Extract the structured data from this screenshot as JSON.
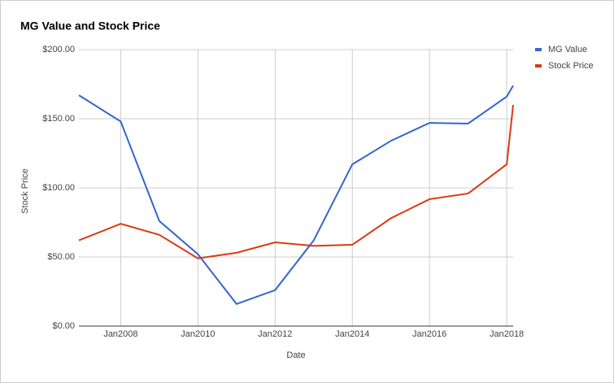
{
  "chart_data": {
    "type": "line",
    "title": "MG Value and Stock Price",
    "x_label": "Date",
    "y_label": "Stock Price",
    "x": [
      "2006-12",
      "2008-01",
      "2009-01",
      "2010-01",
      "2011-01",
      "2012-01",
      "2013-01",
      "2014-01",
      "2015-01",
      "2016-01",
      "2017-01",
      "2018-01",
      "2018-03"
    ],
    "xlim": [
      "2006-12",
      "2018-03"
    ],
    "xticks": [
      {
        "value": "2008-01",
        "label": "Jan2008"
      },
      {
        "value": "2010-01",
        "label": "Jan2010"
      },
      {
        "value": "2012-01",
        "label": "Jan2012"
      },
      {
        "value": "2014-01",
        "label": "Jan2014"
      },
      {
        "value": "2016-01",
        "label": "Jan2016"
      },
      {
        "value": "2018-01",
        "label": "Jan2018"
      }
    ],
    "ylim": [
      0,
      200
    ],
    "yticks": [
      {
        "value": 0,
        "label": "$0.00"
      },
      {
        "value": 50,
        "label": "$50.00"
      },
      {
        "value": 100,
        "label": "$100.00"
      },
      {
        "value": 150,
        "label": "$150.00"
      },
      {
        "value": 200,
        "label": "$200.00"
      }
    ],
    "grid": true,
    "legend": "right",
    "series": [
      {
        "name": "MG Value",
        "color": "#3366cc",
        "values": [
          167,
          148,
          76,
          52,
          16,
          26,
          62,
          117,
          134,
          147,
          146.5,
          166,
          174
        ]
      },
      {
        "name": "Stock Price",
        "color": "#dc3912",
        "values": [
          62,
          74,
          66,
          49,
          53,
          60.6,
          58,
          58.8,
          78,
          91.8,
          95.9,
          117,
          160
        ]
      }
    ]
  }
}
